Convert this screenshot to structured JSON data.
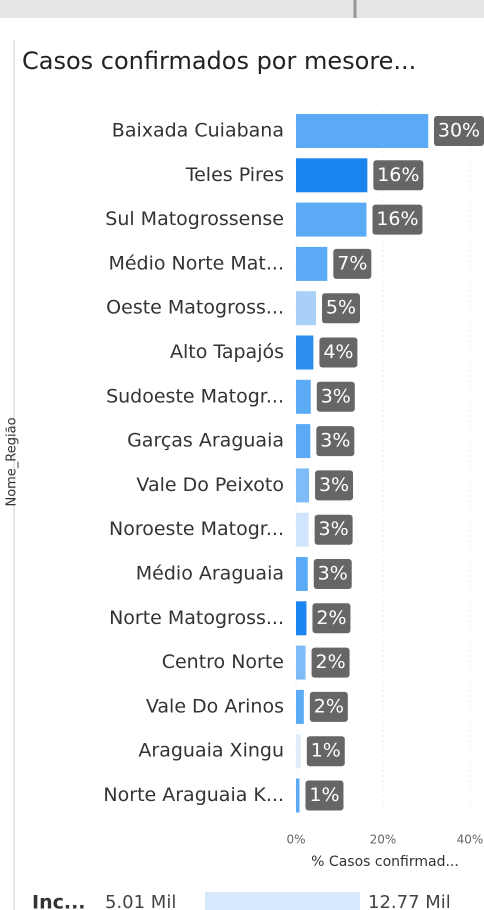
{
  "chart_data": {
    "type": "hbar",
    "title": "Casos confirmados por mesore...",
    "x_label": "% Casos confirmad...",
    "y_label": "Nome_Região",
    "categories": [
      "Baixada Cuiabana",
      "Teles Pires",
      "Sul Matogrossense",
      "Médio Norte Mat...",
      "Oeste Matogross...",
      "Alto Tapajós",
      "Sudoeste Matogr...",
      "Garças Araguaia",
      "Vale Do Peixoto",
      "Noroeste Matogr...",
      "Médio Araguaia",
      "Norte Matogross...",
      "Centro   Norte",
      "Vale   Do   Arinos",
      "Araguaia Xingu",
      "Norte Araguaia K..."
    ],
    "values": [
      30.4,
      16.4,
      16.2,
      7.2,
      4.6,
      4.0,
      3.4,
      3.3,
      3.0,
      2.9,
      2.7,
      2.4,
      2.2,
      1.8,
      1.1,
      0.8
    ],
    "value_labels": [
      "30%",
      "16%",
      "16%",
      "7%",
      "5%",
      "4%",
      "3%",
      "3%",
      "3%",
      "3%",
      "3%",
      "2%",
      "2%",
      "2%",
      "1%",
      "1%"
    ],
    "colors": [
      "#5aaaf5",
      "#1a85f0",
      "#5aaaf5",
      "#5aaaf5",
      "#a9d1f8",
      "#2b8ef0",
      "#5aaaf5",
      "#5aaaf5",
      "#7dbcf6",
      "#cfe5fb",
      "#5aaaf5",
      "#1a85f0",
      "#7dbcf6",
      "#5aaaf5",
      "#e0eefc",
      "#5aaaf5"
    ],
    "xlim": [
      0,
      40
    ],
    "xticks": [
      {
        "value": 0,
        "label": "0%"
      },
      {
        "value": 20,
        "label": "20%"
      },
      {
        "value": 40,
        "label": "40%"
      }
    ]
  },
  "bottom_card": {
    "label": "Inc...",
    "min_label": "5.01 Mil",
    "max_label": "12.77 Mil"
  }
}
